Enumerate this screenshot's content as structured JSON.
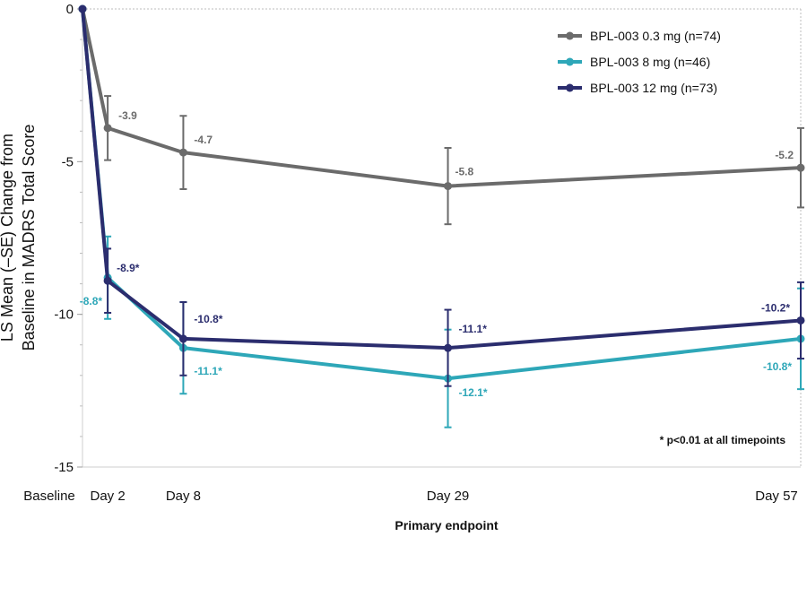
{
  "chart_data": {
    "type": "line",
    "title": "",
    "ylabel_line1": "LS Mean (–SE) Change from",
    "ylabel_line2": "Baseline in MADRS Total Score",
    "xlabel": "Primary endpoint",
    "ylim": [
      -15,
      0
    ],
    "yticks": [
      0,
      -5,
      -10,
      -15
    ],
    "ytick_labels": [
      "0",
      "-5",
      "-10",
      "-15"
    ],
    "x_days": [
      0,
      2,
      8,
      29,
      57
    ],
    "x_tick_labels": [
      "Baseline",
      "Day 2",
      "Day 8",
      "Day 29",
      "Day 57"
    ],
    "legend_position": "top-right",
    "footnote": "* p<0.01 at all timepoints",
    "series": [
      {
        "name": "BPL-003 0.3 mg (n=74)",
        "color": "#6b6b6b",
        "values": [
          0,
          -3.9,
          -4.7,
          -5.8,
          -5.2
        ],
        "se": [
          0,
          1.05,
          1.2,
          1.25,
          1.3
        ],
        "labels": [
          "",
          "-3.9",
          "-4.7",
          "-5.8",
          "-5.2"
        ]
      },
      {
        "name": "BPL-003 8 mg (n=46)",
        "color": "#2ea7b8",
        "values": [
          0,
          -8.8,
          -11.1,
          -12.1,
          -10.8
        ],
        "se": [
          0,
          1.35,
          1.5,
          1.6,
          1.65
        ],
        "labels": [
          "",
          "-8.8*",
          "-11.1*",
          "-12.1*",
          "-10.8*"
        ]
      },
      {
        "name": "BPL-003 12 mg (n=73)",
        "color": "#2b2d6e",
        "values": [
          0,
          -8.9,
          -10.8,
          -11.1,
          -10.2
        ],
        "se": [
          0,
          1.05,
          1.2,
          1.25,
          1.25
        ],
        "labels": [
          "",
          "-8.9*",
          "-10.8*",
          "-11.1*",
          "-10.2*"
        ]
      }
    ]
  }
}
